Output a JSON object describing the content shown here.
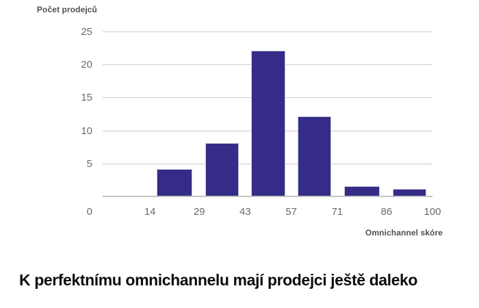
{
  "figure": {
    "y_axis_title": "Počet prodejců",
    "x_axis_title": "Omnichannel skóre",
    "caption": "K perfektnímu omnichannelu mají prodejci ještě daleko"
  },
  "chart_data": {
    "type": "bar",
    "subtype": "histogram",
    "title": "K perfektnímu omnichannelu mají prodejci ještě daleko",
    "xlabel": "Omnichannel skóre",
    "ylabel": "Počet prodejců",
    "categories": [
      "0–14",
      "14–29",
      "29–43",
      "43–57",
      "57–71",
      "71–86",
      "86–100"
    ],
    "bin_edges": [
      0,
      14,
      29,
      43,
      57,
      71,
      86,
      100
    ],
    "values": [
      0,
      4,
      8,
      22,
      12,
      1.5,
      1
    ],
    "x_ticks": [
      0,
      14,
      29,
      43,
      57,
      71,
      86,
      100
    ],
    "y_ticks": [
      5,
      10,
      15,
      20,
      25
    ],
    "xlim": [
      0,
      100
    ],
    "ylim": [
      0,
      25.7
    ],
    "grid": true,
    "legend": false,
    "bar_color": "#342c87",
    "bar_border_color": "#c9c9da",
    "grid_color": "#cbcbcb",
    "axis_line_color": "#c3c3c3",
    "tick_label_color": "#6a6a6a",
    "axis_title_color": "#4f4f4f"
  }
}
